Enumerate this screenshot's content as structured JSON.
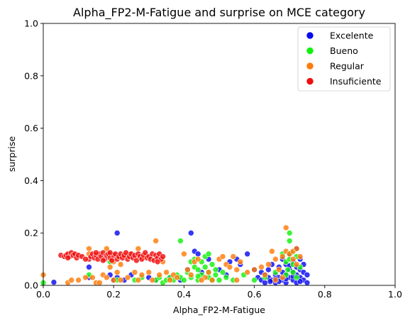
{
  "chart_data": {
    "type": "scatter",
    "title": "Alpha_FP2-M-Fatigue and surprise on MCE category",
    "xlabel": "Alpha_FP2-M-Fatigue",
    "ylabel": "surprise",
    "xlim": [
      0,
      1
    ],
    "ylim": [
      0,
      1
    ],
    "xticks": [
      "0.0",
      "0.2",
      "0.4",
      "0.6",
      "0.8",
      "1.0"
    ],
    "yticks": [
      "0.0",
      "0.2",
      "0.4",
      "0.6",
      "0.8",
      "1.0"
    ],
    "grid": false,
    "legend_position": "top-right",
    "series": [
      {
        "name": "Excelente",
        "color": "#0a0af0",
        "points": [
          [
            0.03,
            0.012
          ],
          [
            0.13,
            0.07
          ],
          [
            0.13,
            0.03
          ],
          [
            0.19,
            0.04
          ],
          [
            0.2,
            0.02
          ],
          [
            0.21,
            0.2
          ],
          [
            0.21,
            0.03
          ],
          [
            0.23,
            0.02
          ],
          [
            0.25,
            0.04
          ],
          [
            0.3,
            0.03
          ],
          [
            0.32,
            0.02
          ],
          [
            0.36,
            0.03
          ],
          [
            0.39,
            0.02
          ],
          [
            0.41,
            0.06
          ],
          [
            0.42,
            0.2
          ],
          [
            0.43,
            0.13
          ],
          [
            0.44,
            0.12
          ],
          [
            0.45,
            0.05
          ],
          [
            0.47,
            0.1
          ],
          [
            0.5,
            0.06
          ],
          [
            0.52,
            0.04
          ],
          [
            0.53,
            0.09
          ],
          [
            0.55,
            0.1
          ],
          [
            0.56,
            0.08
          ],
          [
            0.58,
            0.12
          ],
          [
            0.6,
            0.06
          ],
          [
            0.61,
            0.03
          ],
          [
            0.62,
            0.05
          ],
          [
            0.62,
            0.02
          ],
          [
            0.63,
            0.04
          ],
          [
            0.63,
            0.01
          ],
          [
            0.64,
            0.06
          ],
          [
            0.64,
            0.03
          ],
          [
            0.65,
            0.08
          ],
          [
            0.65,
            0.02
          ],
          [
            0.66,
            0.04
          ],
          [
            0.66,
            0.01
          ],
          [
            0.67,
            0.07
          ],
          [
            0.67,
            0.03
          ],
          [
            0.68,
            0.05
          ],
          [
            0.68,
            0.02
          ],
          [
            0.68,
            0.1
          ],
          [
            0.69,
            0.04
          ],
          [
            0.69,
            0.01
          ],
          [
            0.69,
            0.08
          ],
          [
            0.7,
            0.06
          ],
          [
            0.7,
            0.03
          ],
          [
            0.7,
            0.12
          ],
          [
            0.71,
            0.05
          ],
          [
            0.71,
            0.02
          ],
          [
            0.71,
            0.09
          ],
          [
            0.72,
            0.07
          ],
          [
            0.72,
            0.04
          ],
          [
            0.72,
            0.01
          ],
          [
            0.72,
            0.14
          ],
          [
            0.73,
            0.06
          ],
          [
            0.73,
            0.03
          ],
          [
            0.73,
            0.1
          ],
          [
            0.74,
            0.05
          ],
          [
            0.74,
            0.02
          ],
          [
            0.74,
            0.08
          ],
          [
            0.75,
            0.04
          ],
          [
            0.75,
            0.01
          ],
          [
            0.7,
            0.075
          ],
          [
            0.71,
            0.035
          ],
          [
            0.73,
            0.015
          ],
          [
            0.69,
            0.025
          ],
          [
            0.67,
            0.015
          ],
          [
            0.66,
            0.025
          ],
          [
            0.645,
            0.015
          ]
        ]
      },
      {
        "name": "Bueno",
        "color": "#11f20b",
        "points": [
          [
            0.0,
            0.01
          ],
          [
            0.13,
            0.04
          ],
          [
            0.19,
            0.09
          ],
          [
            0.21,
            0.02
          ],
          [
            0.26,
            0.02
          ],
          [
            0.28,
            0.03
          ],
          [
            0.32,
            0.02
          ],
          [
            0.33,
            0.03
          ],
          [
            0.34,
            0.01
          ],
          [
            0.35,
            0.02
          ],
          [
            0.36,
            0.03
          ],
          [
            0.37,
            0.02
          ],
          [
            0.38,
            0.04
          ],
          [
            0.39,
            0.03
          ],
          [
            0.39,
            0.17
          ],
          [
            0.4,
            0.02
          ],
          [
            0.41,
            0.05
          ],
          [
            0.42,
            0.03
          ],
          [
            0.42,
            0.09
          ],
          [
            0.43,
            0.07
          ],
          [
            0.43,
            0.1
          ],
          [
            0.44,
            0.02
          ],
          [
            0.44,
            0.06
          ],
          [
            0.45,
            0.09
          ],
          [
            0.45,
            0.04
          ],
          [
            0.46,
            0.07
          ],
          [
            0.46,
            0.11
          ],
          [
            0.47,
            0.03
          ],
          [
            0.47,
            0.05
          ],
          [
            0.48,
            0.08
          ],
          [
            0.48,
            0.02
          ],
          [
            0.49,
            0.06
          ],
          [
            0.49,
            0.04
          ],
          [
            0.5,
            0.02
          ],
          [
            0.51,
            0.05
          ],
          [
            0.52,
            0.03
          ],
          [
            0.54,
            0.02
          ],
          [
            0.57,
            0.04
          ],
          [
            0.6,
            0.02
          ],
          [
            0.63,
            0.03
          ],
          [
            0.66,
            0.05
          ],
          [
            0.68,
            0.12
          ],
          [
            0.69,
            0.04
          ],
          [
            0.69,
            0.09
          ],
          [
            0.7,
            0.2
          ],
          [
            0.7,
            0.17
          ],
          [
            0.7,
            0.1
          ],
          [
            0.71,
            0.08
          ],
          [
            0.71,
            0.05
          ],
          [
            0.72,
            0.03
          ],
          [
            0.72,
            0.11
          ],
          [
            0.73,
            0.07
          ],
          [
            0.695,
            0.06
          ],
          [
            0.705,
            0.125
          ],
          [
            0.44,
            0.035
          ],
          [
            0.47,
            0.12
          ]
        ]
      },
      {
        "name": "Regular",
        "color": "#ff7b0a",
        "points": [
          [
            0.0,
            0.04
          ],
          [
            0.07,
            0.01
          ],
          [
            0.08,
            0.02
          ],
          [
            0.1,
            0.02
          ],
          [
            0.12,
            0.03
          ],
          [
            0.13,
            0.14
          ],
          [
            0.13,
            0.12
          ],
          [
            0.14,
            0.03
          ],
          [
            0.15,
            0.01
          ],
          [
            0.17,
            0.04
          ],
          [
            0.18,
            0.03
          ],
          [
            0.18,
            0.14
          ],
          [
            0.19,
            0.07
          ],
          [
            0.2,
            0.09
          ],
          [
            0.21,
            0.05
          ],
          [
            0.22,
            0.08
          ],
          [
            0.22,
            0.02
          ],
          [
            0.23,
            0.11
          ],
          [
            0.24,
            0.03
          ],
          [
            0.25,
            0.12
          ],
          [
            0.26,
            0.05
          ],
          [
            0.27,
            0.02
          ],
          [
            0.27,
            0.14
          ],
          [
            0.28,
            0.04
          ],
          [
            0.29,
            0.11
          ],
          [
            0.3,
            0.05
          ],
          [
            0.31,
            0.02
          ],
          [
            0.32,
            0.17
          ],
          [
            0.33,
            0.04
          ],
          [
            0.34,
            0.09
          ],
          [
            0.35,
            0.05
          ],
          [
            0.36,
            0.02
          ],
          [
            0.37,
            0.04
          ],
          [
            0.38,
            0.03
          ],
          [
            0.4,
            0.12
          ],
          [
            0.41,
            0.06
          ],
          [
            0.42,
            0.04
          ],
          [
            0.43,
            0.09
          ],
          [
            0.44,
            0.1
          ],
          [
            0.46,
            0.03
          ],
          [
            0.47,
            0.05
          ],
          [
            0.48,
            0.02
          ],
          [
            0.5,
            0.1
          ],
          [
            0.51,
            0.11
          ],
          [
            0.52,
            0.08
          ],
          [
            0.53,
            0.07
          ],
          [
            0.54,
            0.11
          ],
          [
            0.55,
            0.06
          ],
          [
            0.56,
            0.09
          ],
          [
            0.58,
            0.05
          ],
          [
            0.6,
            0.06
          ],
          [
            0.62,
            0.07
          ],
          [
            0.63,
            0.04
          ],
          [
            0.64,
            0.08
          ],
          [
            0.65,
            0.13
          ],
          [
            0.66,
            0.1
          ],
          [
            0.67,
            0.06
          ],
          [
            0.68,
            0.11
          ],
          [
            0.69,
            0.22
          ],
          [
            0.69,
            0.13
          ],
          [
            0.7,
            0.12
          ],
          [
            0.71,
            0.1
          ],
          [
            0.71,
            0.13
          ],
          [
            0.72,
            0.08
          ],
          [
            0.72,
            0.14
          ],
          [
            0.73,
            0.11
          ],
          [
            0.68,
            0.03
          ],
          [
            0.66,
            0.02
          ],
          [
            0.55,
            0.02
          ],
          [
            0.45,
            0.02
          ],
          [
            0.2,
            0.02
          ],
          [
            0.16,
            0.01
          ]
        ]
      },
      {
        "name": "Insuficiente",
        "color": "#f00e0e",
        "points": [
          [
            0.05,
            0.115
          ],
          [
            0.06,
            0.11
          ],
          [
            0.065,
            0.115
          ],
          [
            0.07,
            0.12
          ],
          [
            0.075,
            0.11
          ],
          [
            0.08,
            0.125
          ],
          [
            0.085,
            0.115
          ],
          [
            0.09,
            0.12
          ],
          [
            0.095,
            0.105
          ],
          [
            0.1,
            0.115
          ],
          [
            0.13,
            0.1
          ],
          [
            0.135,
            0.11
          ],
          [
            0.14,
            0.12
          ],
          [
            0.145,
            0.105
          ],
          [
            0.15,
            0.115
          ],
          [
            0.155,
            0.1
          ],
          [
            0.16,
            0.12
          ],
          [
            0.165,
            0.11
          ],
          [
            0.17,
            0.125
          ],
          [
            0.175,
            0.1
          ],
          [
            0.18,
            0.115
          ],
          [
            0.185,
            0.12
          ],
          [
            0.19,
            0.105
          ],
          [
            0.195,
            0.095
          ],
          [
            0.2,
            0.115
          ],
          [
            0.205,
            0.12
          ],
          [
            0.21,
            0.1
          ],
          [
            0.215,
            0.11
          ],
          [
            0.22,
            0.12
          ],
          [
            0.225,
            0.105
          ],
          [
            0.23,
            0.115
          ],
          [
            0.235,
            0.125
          ],
          [
            0.24,
            0.1
          ],
          [
            0.245,
            0.11
          ],
          [
            0.25,
            0.12
          ],
          [
            0.255,
            0.105
          ],
          [
            0.26,
            0.115
          ],
          [
            0.265,
            0.095
          ],
          [
            0.27,
            0.12
          ],
          [
            0.275,
            0.11
          ],
          [
            0.28,
            0.1
          ],
          [
            0.285,
            0.115
          ],
          [
            0.29,
            0.125
          ],
          [
            0.295,
            0.105
          ],
          [
            0.3,
            0.11
          ],
          [
            0.305,
            0.1
          ],
          [
            0.31,
            0.12
          ],
          [
            0.315,
            0.095
          ],
          [
            0.32,
            0.115
          ],
          [
            0.325,
            0.105
          ],
          [
            0.33,
            0.12
          ],
          [
            0.335,
            0.1
          ],
          [
            0.34,
            0.11
          ],
          [
            0.15,
            0.125
          ],
          [
            0.17,
            0.095
          ],
          [
            0.19,
            0.125
          ],
          [
            0.11,
            0.11
          ],
          [
            0.12,
            0.1
          ],
          [
            0.07,
            0.105
          ],
          [
            0.325,
            0.09
          ]
        ]
      }
    ]
  }
}
